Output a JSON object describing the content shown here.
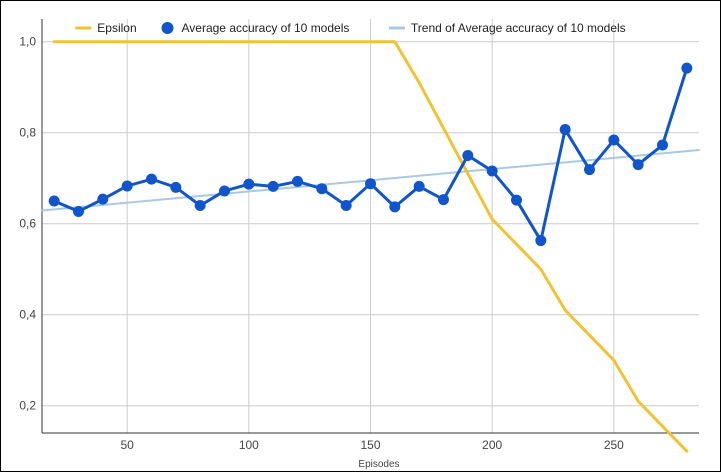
{
  "chart_data": {
    "type": "line",
    "title": "",
    "xlabel": "Episodes",
    "ylabel": "",
    "xlim": [
      15,
      285
    ],
    "ylim": [
      0.14,
      1.05
    ],
    "x_ticks": [
      50,
      100,
      150,
      200,
      250
    ],
    "x_tick_labels": [
      "50",
      "100",
      "150",
      "200",
      "250"
    ],
    "y_ticks": [
      0.2,
      0.4,
      0.6,
      0.8,
      1.0
    ],
    "y_tick_labels": [
      "0,2",
      "0,4",
      "0,6",
      "0,8",
      "1,0"
    ],
    "grid": true,
    "legend_position": "top",
    "series": [
      {
        "name": "Epsilon",
        "kind": "line",
        "color": "#f1c232",
        "x": [
          20,
          160,
          170,
          180,
          190,
          200,
          210,
          220,
          230,
          240,
          250,
          260,
          270,
          280
        ],
        "values": [
          1.0,
          1.0,
          0.91,
          0.81,
          0.71,
          0.61,
          0.555,
          0.5,
          0.41,
          0.355,
          0.3,
          0.21,
          0.155,
          0.1
        ]
      },
      {
        "name": "Average accuracy of 10 models",
        "kind": "line-markers",
        "color": "#1155cc",
        "x": [
          20,
          30,
          40,
          50,
          60,
          70,
          80,
          90,
          100,
          110,
          120,
          130,
          140,
          150,
          160,
          170,
          180,
          190,
          200,
          210,
          220,
          230,
          240,
          250,
          260,
          270,
          280
        ],
        "values": [
          0.65,
          0.627,
          0.654,
          0.683,
          0.698,
          0.68,
          0.64,
          0.672,
          0.687,
          0.682,
          0.693,
          0.677,
          0.64,
          0.688,
          0.637,
          0.682,
          0.653,
          0.75,
          0.716,
          0.652,
          0.563,
          0.807,
          0.719,
          0.784,
          0.73,
          0.773,
          0.942
        ]
      },
      {
        "name": "Trend of Average accuracy of 10 models",
        "kind": "trendline",
        "color": "#a9c8e4",
        "x": [
          15,
          285
        ],
        "values": [
          0.629,
          0.762
        ]
      }
    ]
  }
}
